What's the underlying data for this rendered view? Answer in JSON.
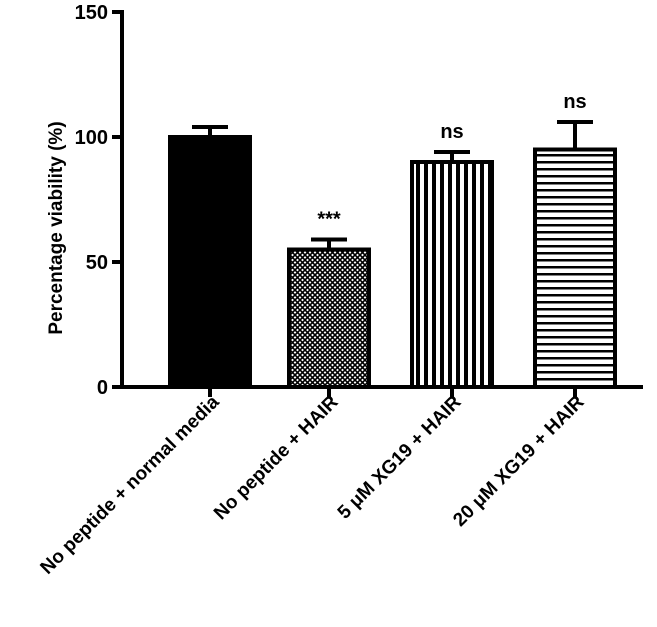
{
  "chart_data": {
    "type": "bar",
    "title": "",
    "xlabel": "",
    "ylabel": "Percentage viability (%)",
    "ylim": [
      0,
      150
    ],
    "yticks": [
      0,
      50,
      100,
      150
    ],
    "ytick_labels": [
      "0",
      "50",
      "100",
      "150"
    ],
    "grid": false,
    "legend": "none",
    "categories": [
      "No peptide + normal media",
      "No peptide + HAIR",
      "5 μM XG19 + HAIR",
      "20 μM XG19 + HAIR"
    ],
    "values": [
      100,
      55,
      90,
      95
    ],
    "error_upper": [
      4,
      4,
      4,
      11
    ],
    "annotations": [
      "",
      "***",
      "ns",
      "ns"
    ],
    "fills": [
      "solid-black",
      "crosshatch",
      "vertical-stripes",
      "horizontal-stripes"
    ],
    "colors": {
      "bar": "#000000",
      "background": "#ffffff"
    }
  }
}
